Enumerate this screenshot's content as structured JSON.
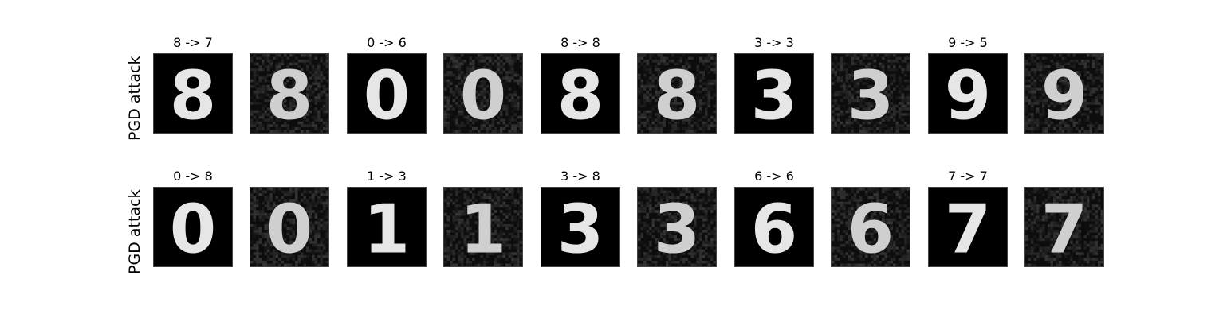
{
  "rows": [
    {
      "label": "PGD attack",
      "pairs": [
        {
          "title": "8 -> 7",
          "digit": "8"
        },
        {
          "title": "0 -> 6",
          "digit": "0"
        },
        {
          "title": "8 -> 8",
          "digit": "8"
        },
        {
          "title": "3 -> 3",
          "digit": "3"
        },
        {
          "title": "9 -> 5",
          "digit": "9"
        }
      ]
    },
    {
      "label": "PGD attack",
      "pairs": [
        {
          "title": "0 -> 8",
          "digit": "0"
        },
        {
          "title": "1 -> 3",
          "digit": "1"
        },
        {
          "title": "3 -> 8",
          "digit": "3"
        },
        {
          "title": "6 -> 6",
          "digit": "6"
        },
        {
          "title": "7 -> 7",
          "digit": "7"
        }
      ]
    }
  ]
}
